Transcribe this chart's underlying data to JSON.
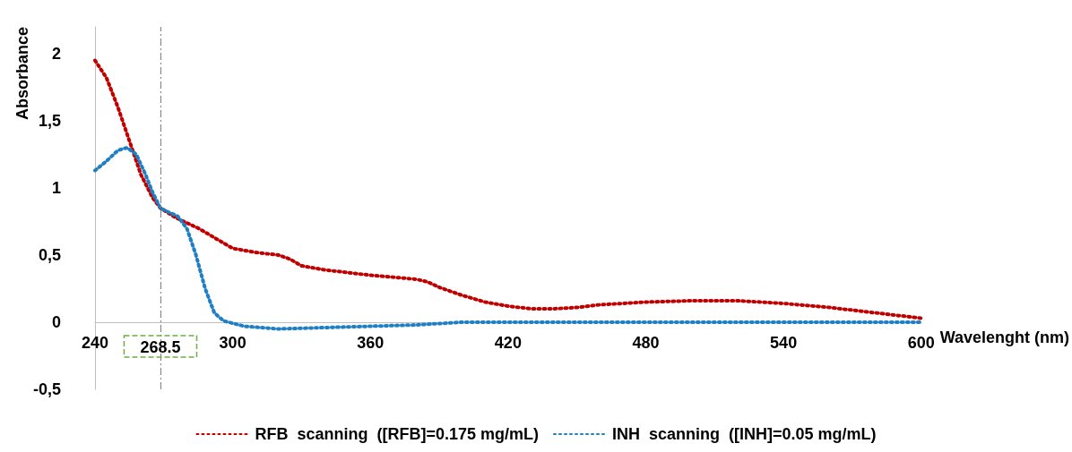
{
  "chart_data": {
    "type": "line",
    "xlabel": "Wavelenght (nm)",
    "ylabel": "Absorbance",
    "xlim": [
      240,
      600
    ],
    "xticks": [
      240,
      300,
      360,
      420,
      480,
      540,
      600
    ],
    "ylim": [
      -0.5,
      2.2
    ],
    "yticks": [
      {
        "value": -0.5,
        "label": "-0,5"
      },
      0,
      {
        "value": 0.5,
        "label": "0,5"
      },
      1,
      {
        "value": 1.5,
        "label": "1,5"
      },
      2
    ],
    "series": [
      {
        "name": "RFB  scanning  ([RFB]=0.175 mg/mL)",
        "color": "#c00000",
        "x": [
          240,
          245,
          250,
          255,
          260,
          265,
          268.5,
          275,
          285,
          295,
          300,
          310,
          320,
          325,
          330,
          340,
          360,
          380,
          385,
          390,
          400,
          410,
          420,
          430,
          440,
          450,
          460,
          480,
          500,
          520,
          540,
          560,
          580,
          600
        ],
        "values": [
          1.95,
          1.82,
          1.6,
          1.35,
          1.1,
          0.93,
          0.85,
          0.78,
          0.7,
          0.6,
          0.55,
          0.52,
          0.5,
          0.47,
          0.42,
          0.39,
          0.35,
          0.32,
          0.3,
          0.26,
          0.2,
          0.15,
          0.12,
          0.1,
          0.1,
          0.11,
          0.13,
          0.15,
          0.16,
          0.16,
          0.14,
          0.11,
          0.07,
          0.03
        ]
      },
      {
        "name": "INH  scanning  ([INH]=0.05 mg/mL)",
        "color": "#1f7fc4",
        "x": [
          240,
          245,
          250,
          254,
          258,
          262,
          265,
          268.5,
          272,
          276,
          280,
          284,
          288,
          292,
          296,
          305,
          320,
          340,
          360,
          380,
          400,
          420,
          600
        ],
        "values": [
          1.13,
          1.2,
          1.28,
          1.3,
          1.25,
          1.1,
          0.97,
          0.85,
          0.82,
          0.79,
          0.7,
          0.5,
          0.25,
          0.07,
          0.01,
          -0.03,
          -0.05,
          -0.04,
          -0.03,
          -0.02,
          0,
          0,
          0
        ]
      }
    ],
    "ref_lines": [
      {
        "axis": "x",
        "value": 268.5,
        "label": "268.5",
        "color": "#7f7f7f",
        "line_style": "dashdot"
      }
    ],
    "legend": "bottom",
    "grid": false,
    "marker": "none",
    "line_style": "dotted"
  }
}
